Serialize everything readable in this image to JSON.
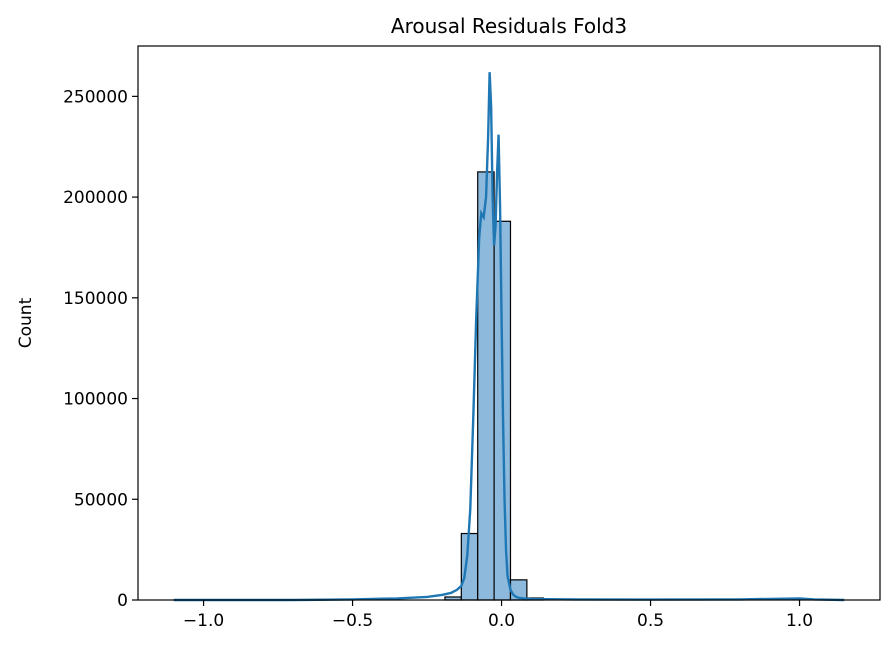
{
  "chart_data": {
    "type": "bar",
    "title": "Arousal Residuals Fold3",
    "xlabel": "",
    "ylabel": "Count",
    "xlim": [
      -1.22,
      1.27
    ],
    "ylim": [
      0,
      275000
    ],
    "xticks": [
      -1.0,
      -0.5,
      0.0,
      0.5,
      1.0
    ],
    "xtick_labels": [
      "−1.0",
      "−0.5",
      "0.0",
      "0.5",
      "1.0"
    ],
    "yticks": [
      0,
      50000,
      100000,
      150000,
      200000,
      250000
    ],
    "ytick_labels": [
      "0",
      "50000",
      "100000",
      "150000",
      "200000",
      "250000"
    ],
    "bins": [
      {
        "x0": -0.19,
        "x1": -0.135,
        "count": 1500
      },
      {
        "x0": -0.135,
        "x1": -0.08,
        "count": 33000
      },
      {
        "x0": -0.08,
        "x1": -0.025,
        "count": 212500
      },
      {
        "x0": -0.025,
        "x1": 0.03,
        "count": 188000
      },
      {
        "x0": 0.03,
        "x1": 0.085,
        "count": 10000
      },
      {
        "x0": 0.085,
        "x1": 0.14,
        "count": 1000
      }
    ],
    "kde": {
      "x": [
        -1.1,
        -0.9,
        -0.7,
        -0.5,
        -0.35,
        -0.25,
        -0.2,
        -0.17,
        -0.15,
        -0.135,
        -0.125,
        -0.115,
        -0.105,
        -0.095,
        -0.085,
        -0.075,
        -0.068,
        -0.06,
        -0.052,
        -0.045,
        -0.04,
        -0.035,
        -0.03,
        -0.025,
        -0.02,
        -0.015,
        -0.01,
        -0.005,
        0.0,
        0.005,
        0.01,
        0.015,
        0.02,
        0.03,
        0.04,
        0.05,
        0.06,
        0.08,
        0.1,
        0.15,
        0.25,
        0.5,
        0.8,
        1.0,
        1.05,
        1.15
      ],
      "y": [
        0,
        0,
        0,
        300,
        800,
        1500,
        2500,
        3500,
        5000,
        7000,
        11000,
        22000,
        45000,
        90000,
        140000,
        180000,
        192000,
        190000,
        200000,
        230000,
        262000,
        245000,
        200000,
        176000,
        186000,
        212000,
        231000,
        195000,
        140000,
        90000,
        50000,
        25000,
        12000,
        5000,
        2500,
        1500,
        1000,
        700,
        500,
        400,
        300,
        200,
        300,
        800,
        300,
        0
      ]
    },
    "colors": {
      "bar_fill": "#8cb9dc",
      "bar_edge": "#000000",
      "kde_line": "#1f77b4"
    },
    "grid": false,
    "legend": "none"
  }
}
